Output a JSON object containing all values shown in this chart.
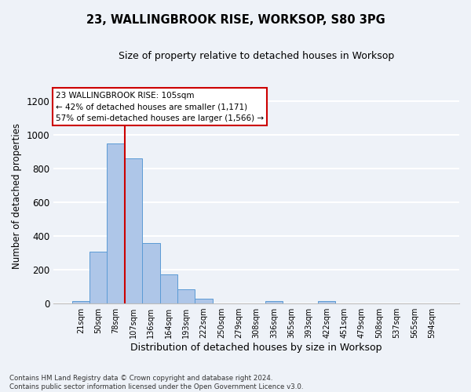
{
  "title": "23, WALLINGBROOK RISE, WORKSOP, S80 3PG",
  "subtitle": "Size of property relative to detached houses in Worksop",
  "xlabel": "Distribution of detached houses by size in Worksop",
  "ylabel": "Number of detached properties",
  "bin_labels": [
    "21sqm",
    "50sqm",
    "78sqm",
    "107sqm",
    "136sqm",
    "164sqm",
    "193sqm",
    "222sqm",
    "250sqm",
    "279sqm",
    "308sqm",
    "336sqm",
    "365sqm",
    "393sqm",
    "422sqm",
    "451sqm",
    "479sqm",
    "508sqm",
    "537sqm",
    "565sqm",
    "594sqm"
  ],
  "bar_values": [
    13,
    305,
    950,
    860,
    358,
    172,
    85,
    30,
    0,
    0,
    0,
    13,
    0,
    0,
    13,
    0,
    0,
    0,
    0,
    0,
    0
  ],
  "bar_color": "#aec6e8",
  "bar_edge_color": "#5b9bd5",
  "vline_color": "#cc0000",
  "annotation_text": "23 WALLINGBROOK RISE: 105sqm\n← 42% of detached houses are smaller (1,171)\n57% of semi-detached houses are larger (1,566) →",
  "annotation_box_color": "#ffffff",
  "annotation_box_edge": "#cc0000",
  "ylim": [
    0,
    1270
  ],
  "yticks": [
    0,
    200,
    400,
    600,
    800,
    1000,
    1200
  ],
  "footnote": "Contains HM Land Registry data © Crown copyright and database right 2024.\nContains public sector information licensed under the Open Government Licence v3.0.",
  "background_color": "#eef2f8",
  "grid_color": "#ffffff"
}
